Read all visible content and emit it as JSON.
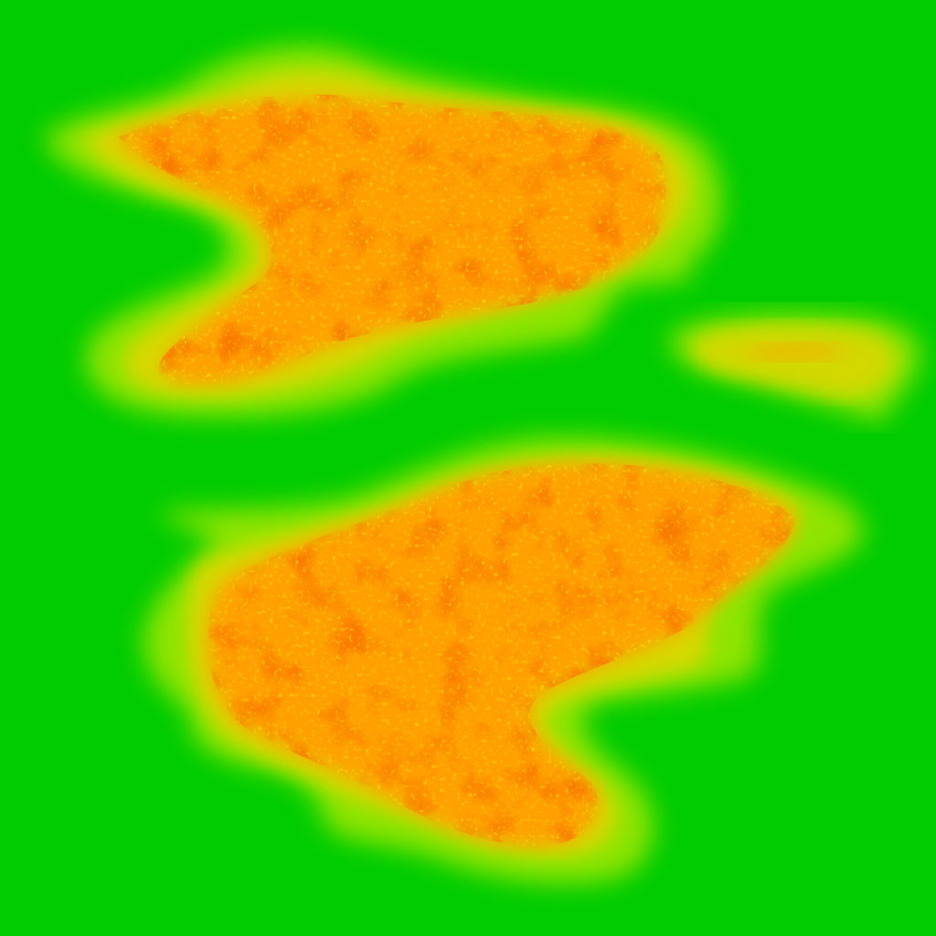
{
  "image": {
    "description_kind": "heat-map-style texture with three blobs on a green background",
    "colors": {
      "background": "#00cc00",
      "edge_outer": "#7ee000",
      "edge_mid": "#c8dc00",
      "edge_inner": "#e0c800",
      "core_light": "#ff9a00",
      "core_mid": "#ff6a00",
      "core_hot": "#f23a00",
      "speckle": "#ffd200"
    }
  }
}
